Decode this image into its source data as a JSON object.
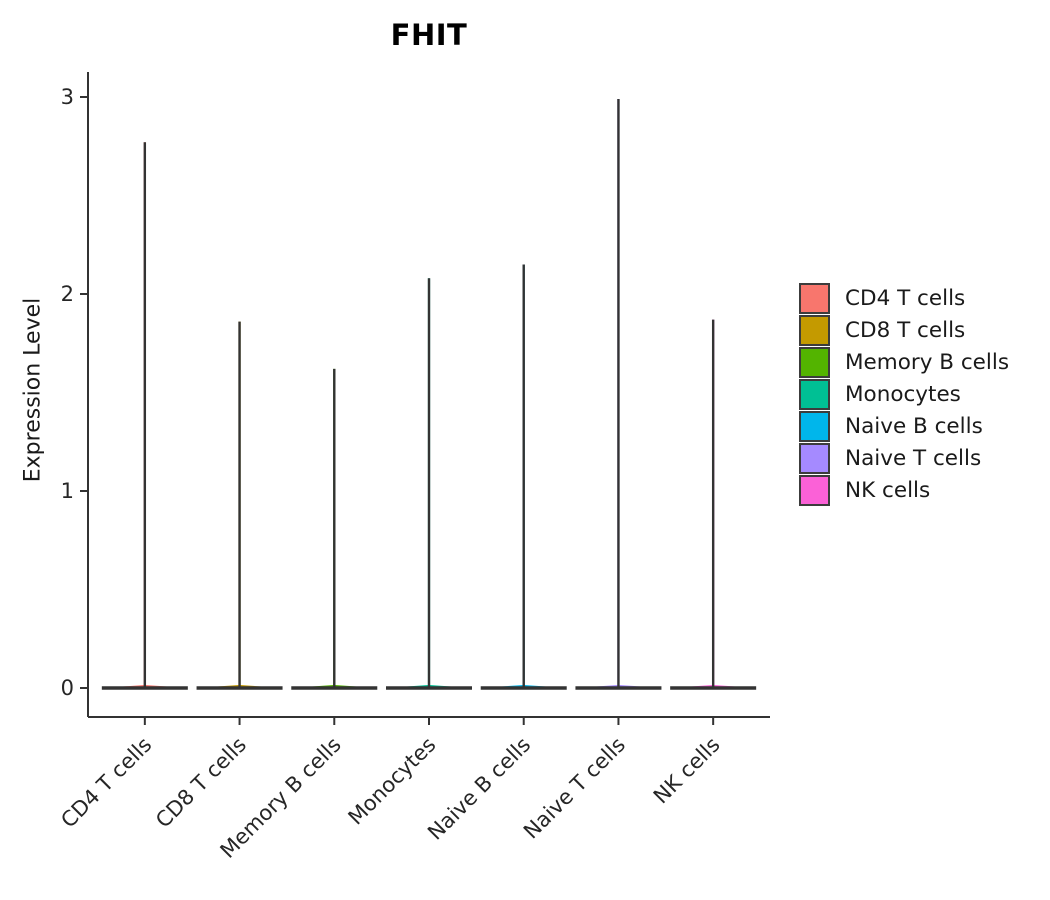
{
  "title": "FHIT",
  "chart_data": {
    "type": "violin",
    "title": "FHIT",
    "xlabel": "",
    "ylabel": "Expression Level",
    "ylim": [
      0,
      3.05
    ],
    "y_ticks": [
      0,
      1,
      2,
      3
    ],
    "grid": false,
    "legend_position": "right",
    "categories": [
      "CD4 T cells",
      "CD8 T cells",
      "Memory B cells",
      "Monocytes",
      "Naive B cells",
      "Naive T cells",
      "NK cells"
    ],
    "series": [
      {
        "name": "CD4 T cells",
        "color": "#F8766D",
        "max_expression": 2.77,
        "density_peak_expression": 0
      },
      {
        "name": "CD8 T cells",
        "color": "#C49A00",
        "max_expression": 1.86,
        "density_peak_expression": 0
      },
      {
        "name": "Memory B cells",
        "color": "#53B400",
        "max_expression": 1.62,
        "density_peak_expression": 0
      },
      {
        "name": "Monocytes",
        "color": "#00C094",
        "max_expression": 2.08,
        "density_peak_expression": 0
      },
      {
        "name": "Naive B cells",
        "color": "#00B6EB",
        "max_expression": 2.15,
        "density_peak_expression": 0
      },
      {
        "name": "Naive T cells",
        "color": "#A58AFF",
        "max_expression": 2.99,
        "density_peak_expression": 0
      },
      {
        "name": "NK cells",
        "color": "#FB61D7",
        "max_expression": 1.87,
        "density_peak_expression": 0
      }
    ]
  },
  "style": {
    "axis_color": "#333333",
    "violin_outline_color": "#333333",
    "text_color": "#262626",
    "background_color": "#ffffff",
    "legend_swatch_border_color": "#3c3c3c"
  }
}
